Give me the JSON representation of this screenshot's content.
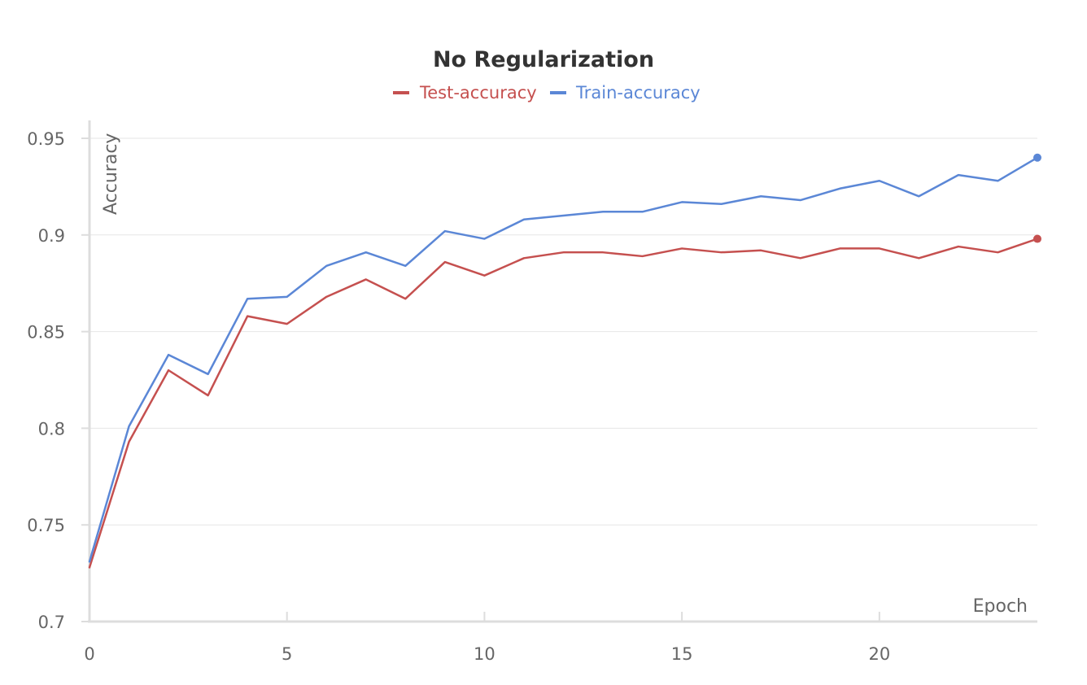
{
  "chart_data": {
    "type": "line",
    "title": "No Regularization",
    "xlabel": "Epoch",
    "ylabel": "Accuracy",
    "xlim": [
      0,
      24
    ],
    "ylim": [
      0.7,
      0.95
    ],
    "x_ticks": [
      0,
      5,
      10,
      15,
      20
    ],
    "y_ticks": [
      0.7,
      0.75,
      0.8,
      0.85,
      0.9,
      0.95
    ],
    "y_tick_labels": [
      "0.7",
      "0.75",
      "0.8",
      "0.85",
      "0.9",
      "0.95"
    ],
    "grid": true,
    "legend_position": "top",
    "x": [
      0,
      1,
      2,
      3,
      4,
      5,
      6,
      7,
      8,
      9,
      10,
      11,
      12,
      13,
      14,
      15,
      16,
      17,
      18,
      19,
      20,
      21,
      22,
      23,
      24
    ],
    "series": [
      {
        "name": "Test-accuracy",
        "color": "#c5504f",
        "values": [
          0.728,
          0.793,
          0.83,
          0.817,
          0.858,
          0.854,
          0.868,
          0.877,
          0.867,
          0.886,
          0.879,
          0.888,
          0.891,
          0.891,
          0.889,
          0.893,
          0.891,
          0.892,
          0.888,
          0.893,
          0.893,
          0.888,
          0.894,
          0.891,
          0.898
        ]
      },
      {
        "name": "Train-accuracy",
        "color": "#5b87d6",
        "values": [
          0.731,
          0.801,
          0.838,
          0.828,
          0.867,
          0.868,
          0.884,
          0.891,
          0.884,
          0.902,
          0.898,
          0.908,
          0.91,
          0.912,
          0.912,
          0.917,
          0.916,
          0.92,
          0.918,
          0.924,
          0.928,
          0.92,
          0.931,
          0.928,
          0.94
        ]
      }
    ]
  }
}
